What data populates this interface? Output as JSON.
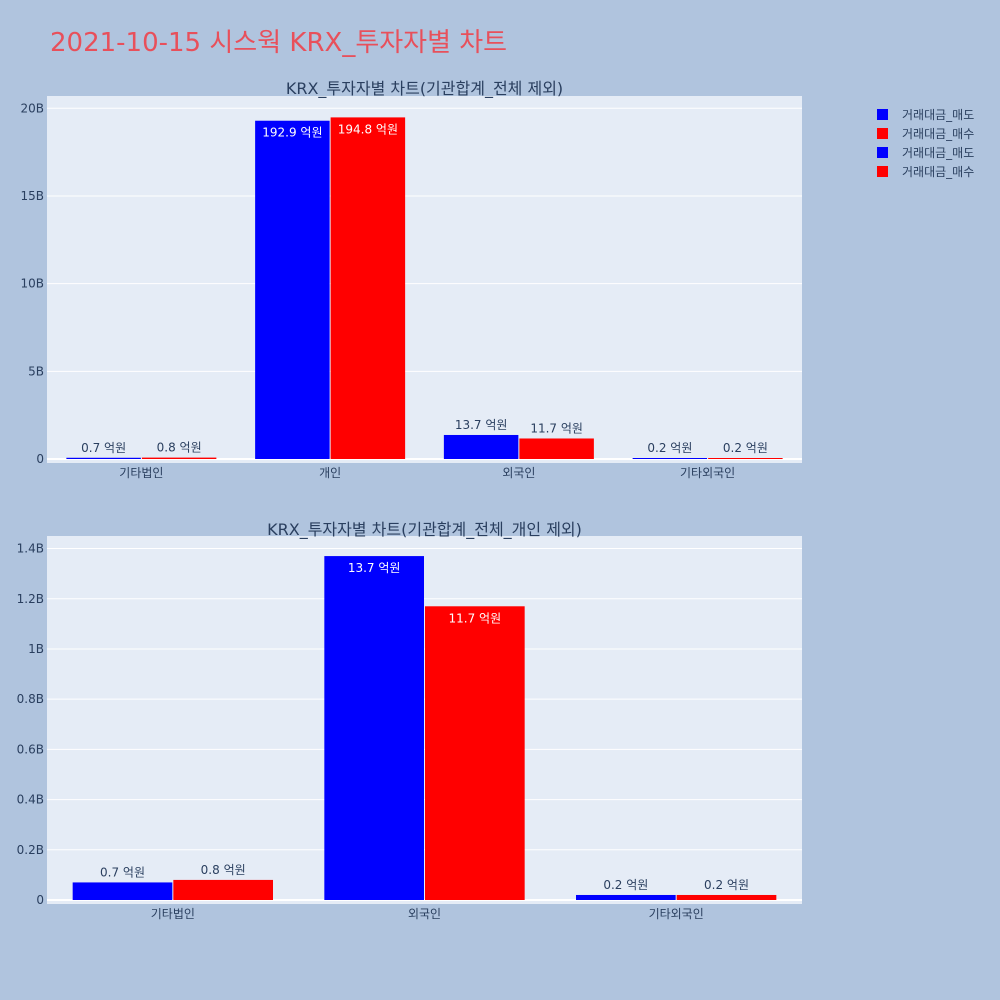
{
  "page_title": "2021-10-15 시스웍 KRX_투자자별 차트",
  "legend": [
    {
      "label": "거래대금_매도",
      "color": "#0000ff"
    },
    {
      "label": "거래대금_매수",
      "color": "#ff0000"
    },
    {
      "label": "거래대금_매도",
      "color": "#0000ff"
    },
    {
      "label": "거래대금_매수",
      "color": "#ff0000"
    }
  ],
  "colors": {
    "sell": "#0000ff",
    "buy": "#ff0000",
    "plot_bg": "#e5ecf6",
    "paper_bg": "#b0c4de"
  },
  "chart_data": [
    {
      "type": "bar",
      "title": "KRX_투자자별 차트(기관합계_전체 제외)",
      "categories": [
        "기타법인",
        "개인",
        "외국인",
        "기타외국인"
      ],
      "series": [
        {
          "name": "거래대금_매도",
          "color": "#0000ff",
          "values": [
            70000000,
            19290000000,
            1370000000,
            20000000
          ],
          "labels": [
            "0.7 억원",
            "192.9 억원",
            "13.7 억원",
            "0.2 억원"
          ]
        },
        {
          "name": "거래대금_매수",
          "color": "#ff0000",
          "values": [
            80000000,
            19480000000,
            1170000000,
            20000000
          ],
          "labels": [
            "0.8 억원",
            "194.8 억원",
            "11.7 억원",
            "0.2 억원"
          ]
        }
      ],
      "yticks": [
        0,
        5000000000,
        10000000000,
        15000000000,
        20000000000
      ],
      "ytick_labels": [
        "0",
        "5B",
        "10B",
        "15B",
        "20B"
      ],
      "ylim": [
        0,
        20700000000
      ],
      "xlabel": "",
      "ylabel": "",
      "grid": true
    },
    {
      "type": "bar",
      "title": "KRX_투자자별 차트(기관합계_전체_개인 제외)",
      "categories": [
        "기타법인",
        "외국인",
        "기타외국인"
      ],
      "series": [
        {
          "name": "거래대금_매도",
          "color": "#0000ff",
          "values": [
            70000000,
            1370000000,
            20000000
          ],
          "labels": [
            "0.7 억원",
            "13.7 억원",
            "0.2 억원"
          ]
        },
        {
          "name": "거래대금_매수",
          "color": "#ff0000",
          "values": [
            80000000,
            1170000000,
            20000000
          ],
          "labels": [
            "0.8 억원",
            "11.7 억원",
            "0.2 억원"
          ]
        }
      ],
      "yticks": [
        0,
        200000000,
        400000000,
        600000000,
        800000000,
        1000000000,
        1200000000,
        1400000000
      ],
      "ytick_labels": [
        "0",
        "0.2B",
        "0.4B",
        "0.6B",
        "0.8B",
        "1B",
        "1.2B",
        "1.4B"
      ],
      "ylim": [
        0,
        1450000000
      ],
      "xlabel": "",
      "ylabel": "",
      "grid": true
    }
  ]
}
